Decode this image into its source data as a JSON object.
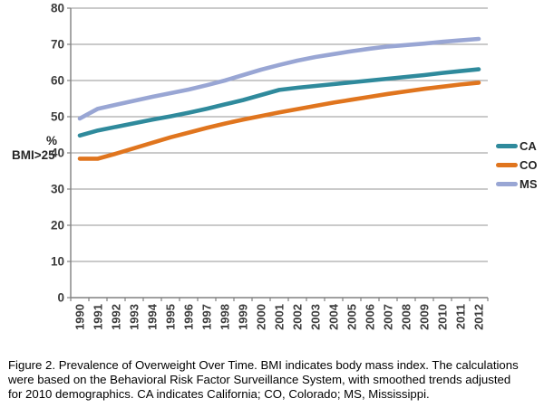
{
  "figure": {
    "caption_lines": [
      "Figure 2. Prevalence of Overweight Over Time. BMI indicates body mass index. The calculations",
      "were based on the Behavioral Risk Factor Surveillance System, with smoothed trends adjusted",
      "for 2010 demographics. CA indicates California; CO, Colorado; MS, Mississippi."
    ]
  },
  "chart_data": {
    "type": "line",
    "title": "",
    "xlabel": "",
    "ylabel_line1": "%",
    "ylabel_line2": "BMI>25",
    "ylim": [
      0,
      80
    ],
    "ytick_step": 10,
    "grid": true,
    "legend_position": "right",
    "categories": [
      "1990",
      "1991",
      "1992",
      "1993",
      "1994",
      "1995",
      "1996",
      "1997",
      "1998",
      "1999",
      "2000",
      "2001",
      "2002",
      "2003",
      "2004",
      "2005",
      "2006",
      "2007",
      "2008",
      "2009",
      "2010",
      "2011",
      "2012"
    ],
    "series": [
      {
        "name": "CA",
        "color": "#2F8A9C",
        "values": [
          44.8,
          46.2,
          47.2,
          48.2,
          49.2,
          50.1,
          51.1,
          52.2,
          53.4,
          54.6,
          56.0,
          57.4,
          58.0,
          58.5,
          59.0,
          59.5,
          60.0,
          60.5,
          61.0,
          61.5,
          62.1,
          62.6,
          63.1
        ]
      },
      {
        "name": "CO",
        "color": "#E0751E",
        "values": [
          38.4,
          38.4,
          39.8,
          41.3,
          42.8,
          44.3,
          45.6,
          46.9,
          48.1,
          49.2,
          50.2,
          51.2,
          52.1,
          53.0,
          53.9,
          54.7,
          55.5,
          56.3,
          57.0,
          57.7,
          58.3,
          58.9,
          59.4
        ]
      },
      {
        "name": "MS",
        "color": "#99A6D4",
        "values": [
          49.5,
          52.2,
          53.3,
          54.4,
          55.5,
          56.5,
          57.5,
          58.7,
          60.0,
          61.5,
          63.0,
          64.3,
          65.5,
          66.5,
          67.3,
          68.1,
          68.8,
          69.4,
          69.8,
          70.2,
          70.7,
          71.1,
          71.5
        ]
      }
    ],
    "style": {
      "grid_color": "#ABABAB",
      "axis_color": "#808080",
      "line_width": 4.6
    }
  }
}
